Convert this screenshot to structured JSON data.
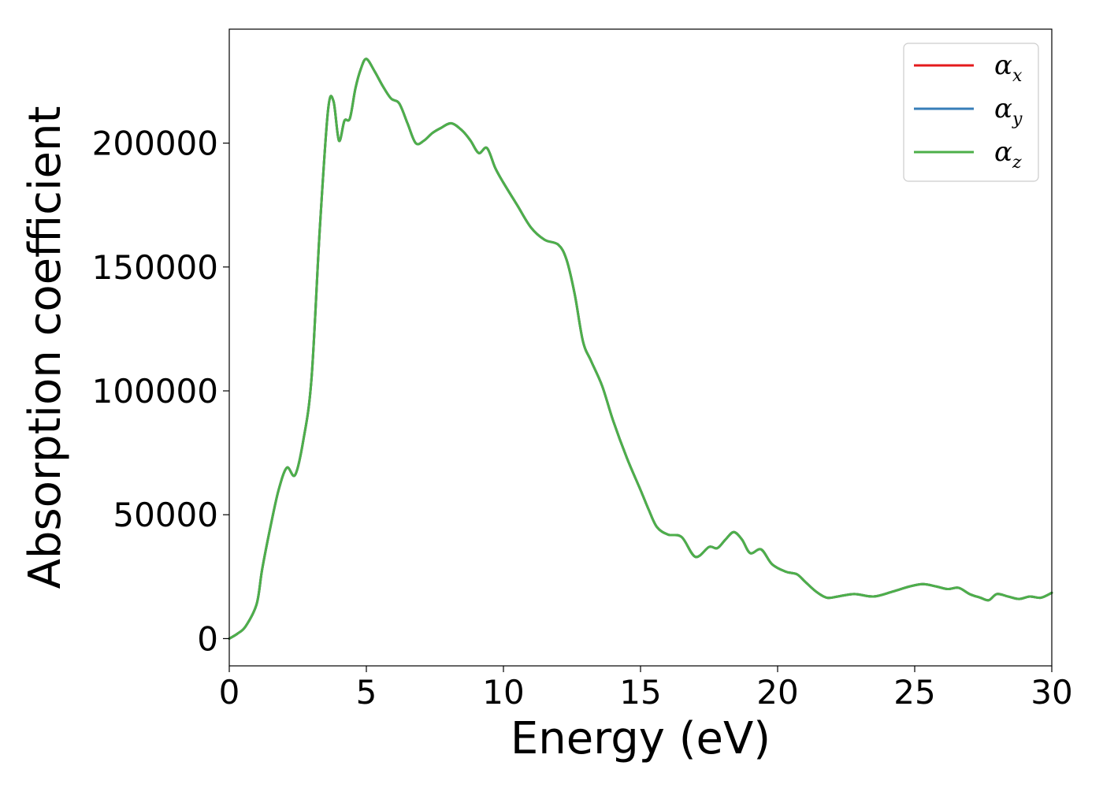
{
  "chart_data": {
    "type": "line",
    "xlabel": "Energy (eV)",
    "ylabel": "Absorption coefficient",
    "xlim": [
      0,
      30
    ],
    "ylim": [
      -11000,
      246000
    ],
    "xticks": [
      0,
      5,
      10,
      15,
      20,
      25,
      30
    ],
    "yticks": [
      0,
      50000,
      100000,
      150000,
      200000
    ],
    "grid": false,
    "legend_position": "top-right",
    "legend": [
      {
        "symbol": "α",
        "subscript": "x",
        "color": "#e41a1c"
      },
      {
        "symbol": "α",
        "subscript": "y",
        "color": "#377eb8"
      },
      {
        "symbol": "α",
        "subscript": "z",
        "color": "#4daf4a"
      }
    ],
    "x": [
      0,
      0.3,
      0.6,
      1.0,
      1.2,
      1.5,
      1.8,
      2.1,
      2.4,
      2.7,
      3.0,
      3.3,
      3.6,
      3.8,
      4.0,
      4.2,
      4.4,
      4.6,
      4.8,
      5.0,
      5.3,
      5.6,
      5.9,
      6.2,
      6.5,
      6.8,
      7.1,
      7.4,
      7.7,
      8.1,
      8.5,
      8.8,
      9.1,
      9.4,
      9.7,
      10.0,
      10.5,
      11.0,
      11.5,
      12.0,
      12.3,
      12.6,
      12.9,
      13.2,
      13.6,
      14.0,
      14.5,
      15.0,
      15.3,
      15.6,
      16.0,
      16.5,
      17.0,
      17.5,
      17.8,
      18.1,
      18.4,
      18.7,
      19.0,
      19.4,
      19.8,
      20.3,
      20.7,
      21.0,
      21.4,
      21.8,
      22.2,
      22.8,
      23.5,
      24.2,
      24.8,
      25.3,
      25.8,
      26.2,
      26.6,
      27.0,
      27.4,
      27.7,
      28.0,
      28.4,
      28.8,
      29.2,
      29.6,
      30.0
    ],
    "series": [
      {
        "values": [
          0,
          2000,
          5000,
          14000,
          28000,
          45000,
          60000,
          69000,
          66000,
          80000,
          105000,
          165000,
          213000,
          217000,
          201000,
          209000,
          210000,
          222000,
          230000,
          234000,
          229000,
          223000,
          218000,
          216000,
          208000,
          200000,
          201000,
          204000,
          206000,
          208000,
          205000,
          201000,
          196000,
          198000,
          190000,
          184000,
          175000,
          166000,
          161000,
          159000,
          153000,
          139000,
          120000,
          112000,
          102000,
          88000,
          73000,
          60000,
          52000,
          45000,
          42000,
          41000,
          33000,
          37000,
          36500,
          40000,
          43000,
          40000,
          34500,
          36000,
          30000,
          27000,
          26000,
          23000,
          19000,
          16500,
          17000,
          18000,
          17000,
          19000,
          21000,
          22000,
          21000,
          20000,
          20500,
          18000,
          16500,
          15500,
          18000,
          17000,
          16000,
          17000,
          16500,
          18500
        ]
      },
      {
        "values": [
          0,
          2000,
          5000,
          14000,
          28000,
          45000,
          60000,
          69000,
          66000,
          80000,
          105000,
          165000,
          213000,
          217000,
          201000,
          209000,
          210000,
          222000,
          230000,
          234000,
          229000,
          223000,
          218000,
          216000,
          208000,
          200000,
          201000,
          204000,
          206000,
          208000,
          205000,
          201000,
          196000,
          198000,
          190000,
          184000,
          175000,
          166000,
          161000,
          159000,
          153000,
          139000,
          120000,
          112000,
          102000,
          88000,
          73000,
          60000,
          52000,
          45000,
          42000,
          41000,
          33000,
          37000,
          36500,
          40000,
          43000,
          40000,
          34500,
          36000,
          30000,
          27000,
          26000,
          23000,
          19000,
          16500,
          17000,
          18000,
          17000,
          19000,
          21000,
          22000,
          21000,
          20000,
          20500,
          18000,
          16500,
          15500,
          18000,
          17000,
          16000,
          17000,
          16500,
          18500
        ]
      },
      {
        "values": [
          0,
          2000,
          5000,
          14000,
          28000,
          45000,
          60000,
          69000,
          66000,
          80000,
          105000,
          165000,
          213000,
          217000,
          201000,
          209000,
          210000,
          222000,
          230000,
          234000,
          229000,
          223000,
          218000,
          216000,
          208000,
          200000,
          201000,
          204000,
          206000,
          208000,
          205000,
          201000,
          196000,
          198000,
          190000,
          184000,
          175000,
          166000,
          161000,
          159000,
          153000,
          139000,
          120000,
          112000,
          102000,
          88000,
          73000,
          60000,
          52000,
          45000,
          42000,
          41000,
          33000,
          37000,
          36500,
          40000,
          43000,
          40000,
          34500,
          36000,
          30000,
          27000,
          26000,
          23000,
          19000,
          16500,
          17000,
          18000,
          17000,
          19000,
          21000,
          22000,
          21000,
          20000,
          20500,
          18000,
          16500,
          15500,
          18000,
          17000,
          16000,
          17000,
          16500,
          18500
        ]
      }
    ]
  }
}
